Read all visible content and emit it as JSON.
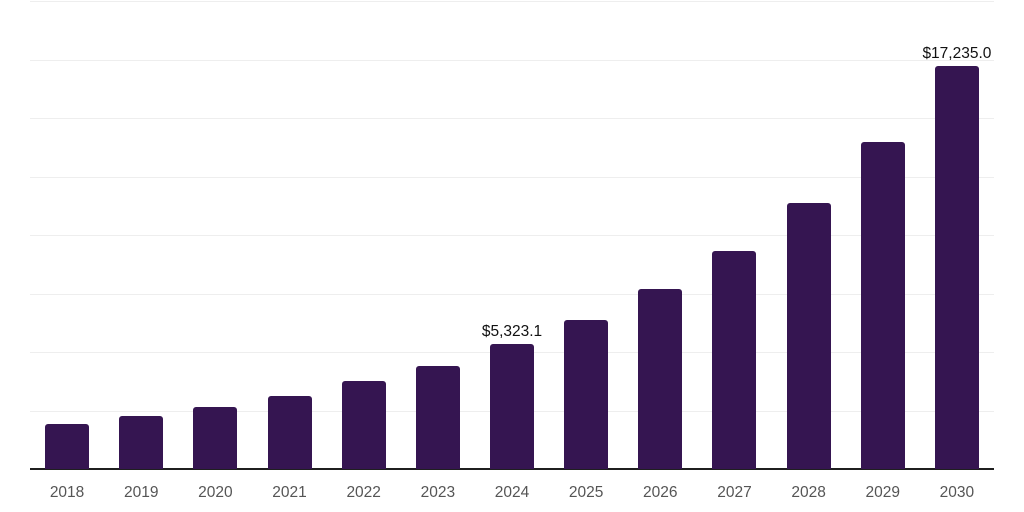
{
  "chart_data": {
    "type": "bar",
    "title": "",
    "categories": [
      "2018",
      "2019",
      "2020",
      "2021",
      "2022",
      "2023",
      "2024",
      "2025",
      "2026",
      "2027",
      "2028",
      "2029",
      "2030"
    ],
    "values": [
      1910,
      2265,
      2665,
      3135,
      3750,
      4405,
      5323.1,
      6370,
      7695,
      9320,
      11385,
      13990,
      17235.0
    ],
    "data_labels": [
      null,
      null,
      null,
      null,
      null,
      null,
      "$5,323.1",
      null,
      null,
      null,
      null,
      null,
      "$17,235.0"
    ],
    "xlabel": "",
    "ylabel": "",
    "ylim": [
      0,
      20000
    ],
    "gridline_step": 2500,
    "grid": "horizontal-only",
    "legend": "none",
    "y_axis_tick_labels_visible": false,
    "series_name": "bar-series"
  },
  "colors": {
    "background": "#ffffff",
    "bar": "#351551",
    "axis_line": "#1f1f1f",
    "gridline": "#eeeeee",
    "x_label_text": "#555555",
    "data_label_text": "#111111"
  }
}
